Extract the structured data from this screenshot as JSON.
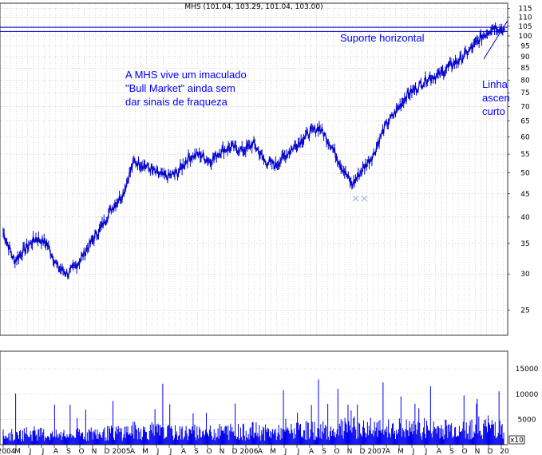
{
  "chart_data": {
    "type": "line",
    "title": "MHS (101.04, 103.29, 101.04, 103.00)",
    "y_scale": "log",
    "ylim": [
      22,
      118
    ],
    "y_ticks": [
      25,
      30,
      35,
      40,
      45,
      50,
      55,
      60,
      65,
      70,
      75,
      80,
      85,
      90,
      95,
      100,
      105,
      110,
      115
    ],
    "volume_ticks": [
      5000,
      10000,
      15000
    ],
    "volume_unit_label": "x10",
    "x_tick_labels": [
      "2004",
      "M",
      "J",
      "J",
      "A",
      "S",
      "O",
      "N",
      "D",
      "2005",
      "A",
      "M",
      "J",
      "J",
      "A",
      "S",
      "O",
      "N",
      "D",
      "2006",
      "A",
      "M",
      "J",
      "J",
      "A",
      "S",
      "O",
      "N",
      "D",
      "2007",
      "A",
      "M",
      "J",
      "J",
      "A",
      "S",
      "O",
      "N",
      "D",
      "20"
    ],
    "grid": true,
    "series": [
      {
        "x": [
          "2004-03",
          "2004-04",
          "2004-05",
          "2004-06",
          "2004-07",
          "2004-08",
          "2004-09",
          "2004-10",
          "2004-11",
          "2004-12",
          "2005-01",
          "2005-02",
          "2005-03",
          "2005-04",
          "2005-05",
          "2005-06",
          "2005-07",
          "2005-08",
          "2005-09",
          "2005-10",
          "2005-11",
          "2005-12",
          "2006-01",
          "2006-02",
          "2006-03",
          "2006-04",
          "2006-05",
          "2006-06",
          "2006-07",
          "2006-08",
          "2006-09",
          "2006-10",
          "2006-11",
          "2006-12",
          "2007-01",
          "2007-02",
          "2007-03",
          "2007-04",
          "2007-05",
          "2007-06",
          "2007-07",
          "2007-08",
          "2007-09",
          "2007-10",
          "2007-11",
          "2007-12",
          "2008-01"
        ],
        "values": [
          37,
          32,
          34,
          36,
          35,
          31,
          30,
          32,
          35,
          38,
          42,
          45,
          53,
          52,
          50,
          49,
          50,
          54,
          55,
          53,
          56,
          57,
          56,
          58,
          53,
          52,
          55,
          58,
          61,
          63,
          58,
          52,
          47,
          51,
          55,
          63,
          68,
          74,
          77,
          81,
          82,
          86,
          89,
          94,
          100,
          105,
          103
        ]
      }
    ],
    "volume": [
      2500,
      2300,
      2600,
      2800,
      2400,
      2200,
      2300,
      2500,
      2700,
      2600,
      2900,
      3100,
      3500,
      3200,
      3300,
      3000,
      2800,
      3000,
      3100,
      2900,
      3200,
      3300,
      3100,
      3400,
      3000,
      2900,
      3100,
      3300,
      3500,
      3600,
      3400,
      3800,
      4200,
      3900,
      3600,
      3700,
      4100,
      3800,
      3600,
      3700,
      3900,
      4000,
      3800,
      4100,
      4300,
      4600,
      4200
    ],
    "annotations": [
      {
        "text": "Suporte horizontal"
      },
      {
        "lines": [
          "A MHS vive um imaculado",
          "\"Bull Market\" ainda sem",
          "dar sinais de fraqueza"
        ]
      },
      {
        "lines": [
          "Linha",
          "ascen",
          "curto"
        ]
      }
    ]
  },
  "colors": {
    "price": "#0000cc",
    "volume": "#0000ee",
    "grid": "#b0b0b0",
    "annotation": "#0000ff",
    "support_line": "#0000cc",
    "low_marker": "#aab8e8"
  }
}
